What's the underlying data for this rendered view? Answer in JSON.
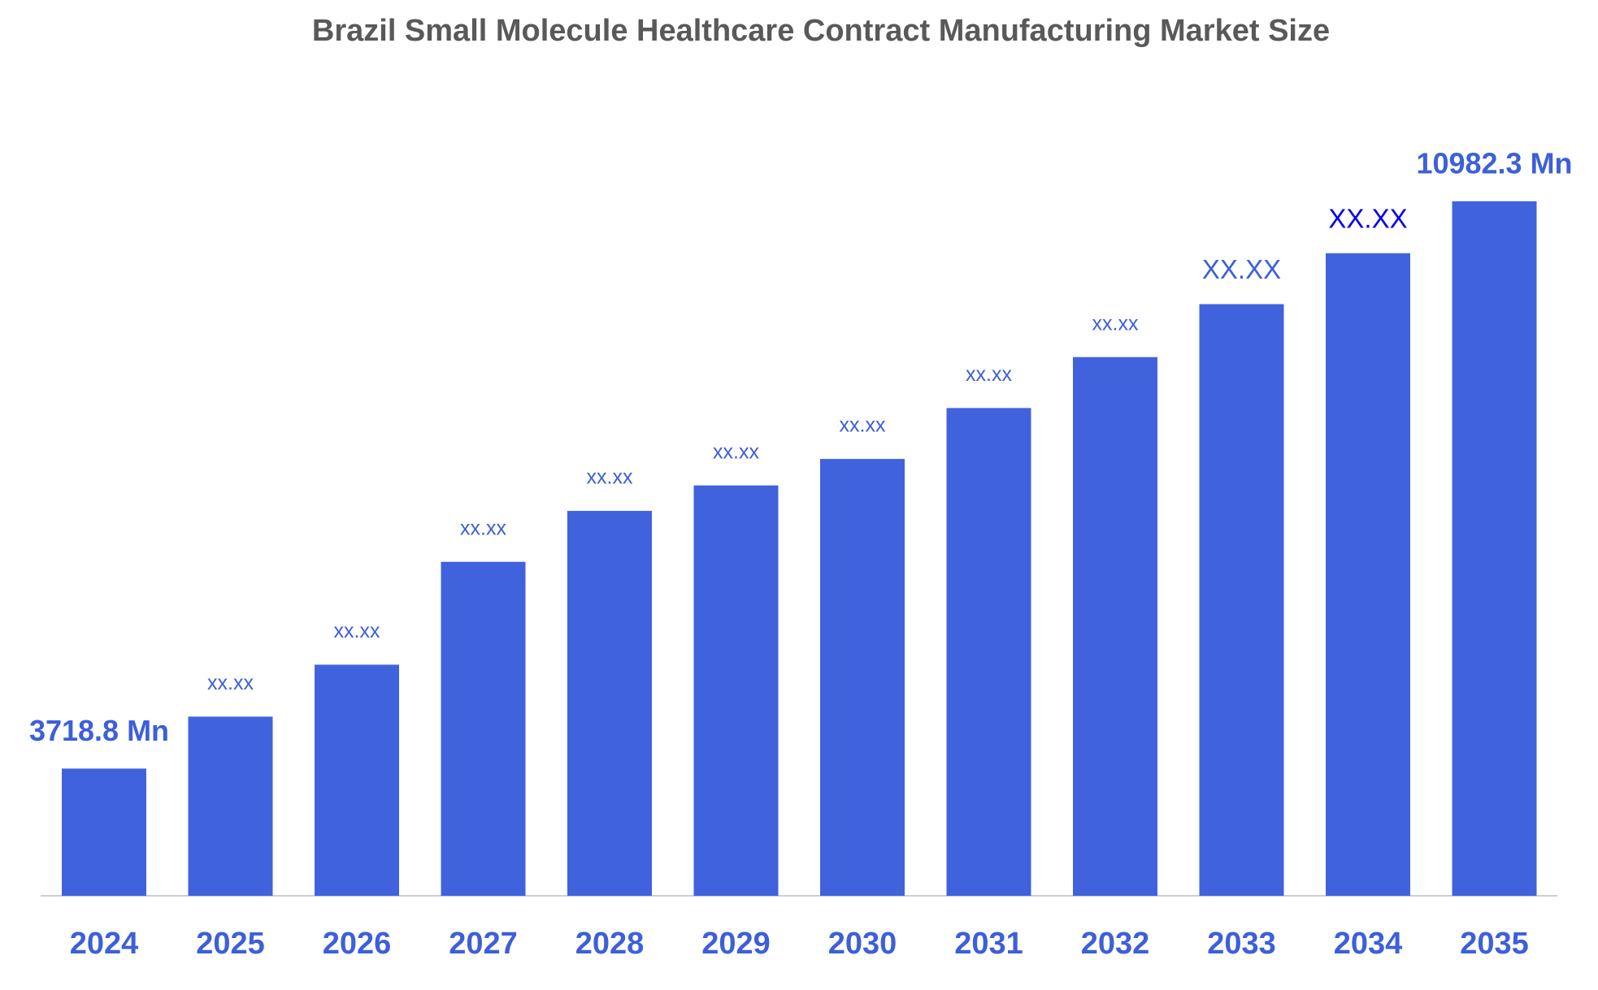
{
  "chart_data": {
    "type": "bar",
    "title": "Brazil Small Molecule Healthcare Contract Manufacturing Market Size",
    "categories": [
      "2024",
      "2025",
      "2026",
      "2027",
      "2028",
      "2029",
      "2030",
      "2031",
      "2032",
      "2033",
      "2034",
      "2035"
    ],
    "values": [
      3718.8,
      4384,
      5049,
      6366,
      7018,
      7344,
      7683,
      8335,
      8987,
      9665,
      10317,
      10982.3
    ],
    "value_labels": [
      "3718.8 Mn",
      "xx.xx",
      "xx.xx",
      "xx.xx",
      "xx.xx",
      "xx.xx",
      "xx.xx",
      "xx.xx",
      "xx.xx",
      "XX.XX",
      "XX.XX",
      "10982.3 Mn"
    ],
    "value_label_colors": [
      "#3d5fd9",
      "#3d5fd9",
      "#3d5fd9",
      "#3d5fd9",
      "#3d5fd9",
      "#3d5fd9",
      "#3d5fd9",
      "#3d5fd9",
      "#3d5fd9",
      "#3d5fd9",
      "#0000ee",
      "#3d5fd9"
    ],
    "color": "#4063dd",
    "ylim": [
      2090,
      11500
    ]
  }
}
